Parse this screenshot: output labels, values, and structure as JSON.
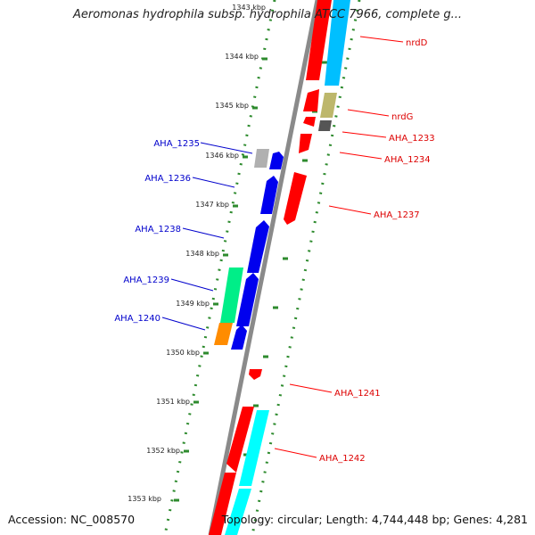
{
  "title": "Aeromonas hydrophila subsp. hydrophila ATCC 7966, complete g...",
  "footer": {
    "accession": "Accession: NC_008570",
    "summary": "Topology: circular; Length: 4,744,448 bp; Genes: 4,281"
  },
  "colors": {
    "backbone": "#8a8a8a",
    "tick": "#2e8b2e",
    "forward_label": "#0000cc",
    "reverse_label": "#dd0000"
  },
  "scale_labels": [
    "1343 kbp",
    "1344 kbp",
    "1345 kbp",
    "1346 kbp",
    "1347 kbp",
    "1348 kbp",
    "1349 kbp",
    "1350 kbp",
    "1351 kbp",
    "1352 kbp",
    "1353 kbp"
  ],
  "genes": [
    {
      "label": "nrdD",
      "side": "reverse"
    },
    {
      "label": "nrdG",
      "side": "reverse"
    },
    {
      "label": "AHA_1233",
      "side": "reverse"
    },
    {
      "label": "AHA_1234",
      "side": "reverse"
    },
    {
      "label": "AHA_1237",
      "side": "reverse"
    },
    {
      "label": "AHA_1241",
      "side": "reverse"
    },
    {
      "label": "AHA_1242",
      "side": "reverse"
    },
    {
      "label": "AHA_1235",
      "side": "forward"
    },
    {
      "label": "AHA_1236",
      "side": "forward"
    },
    {
      "label": "AHA_1238",
      "side": "forward"
    },
    {
      "label": "AHA_1239",
      "side": "forward"
    },
    {
      "label": "AHA_1240",
      "side": "forward"
    }
  ]
}
